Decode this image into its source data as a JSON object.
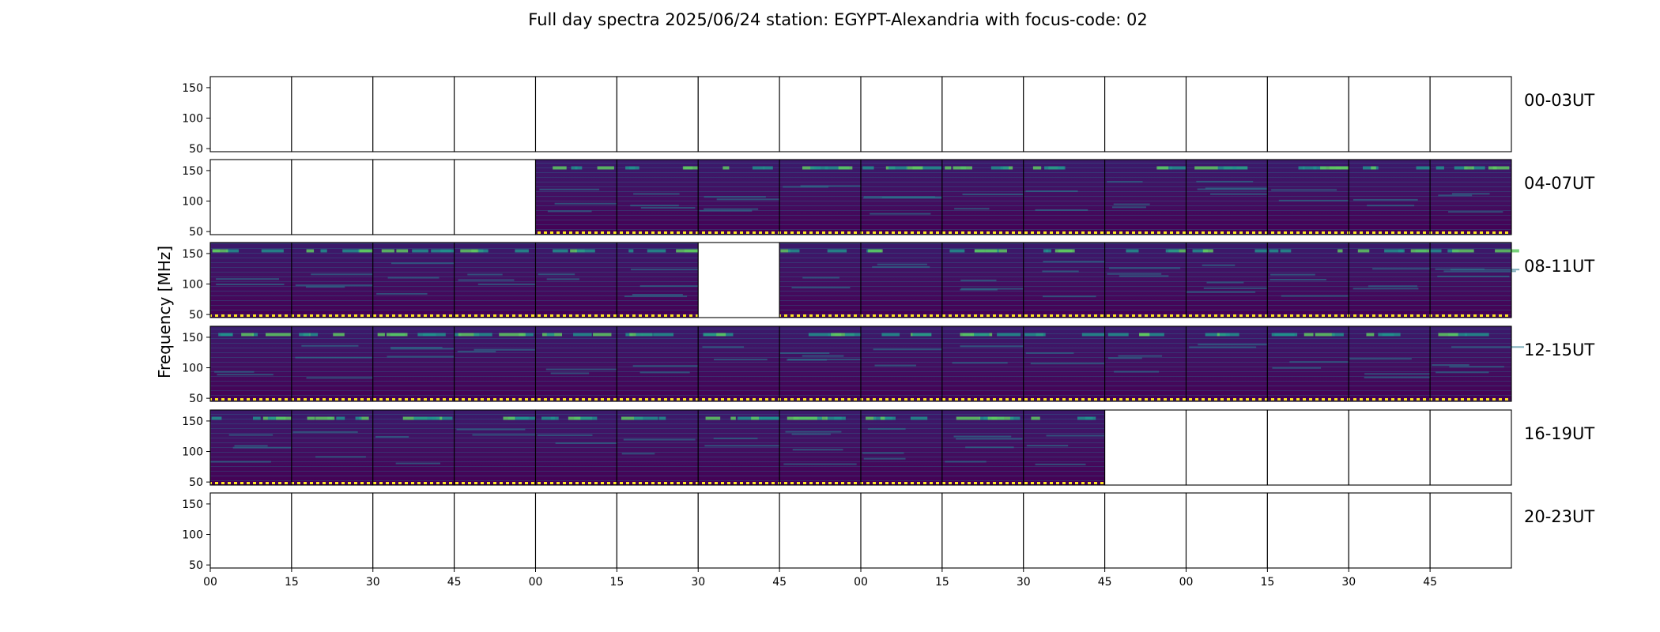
{
  "chart_data": {
    "type": "heatmap",
    "title": "Full day spectra 2025/06/24 station: EGYPT-Alexandria with focus-code: 02",
    "ylabel": "Frequency [MHz]",
    "xlabel": "",
    "ylim": [
      45,
      168
    ],
    "yticks": [
      50,
      100,
      150
    ],
    "xtick_labels": [
      "00",
      "15",
      "30",
      "45",
      "00",
      "15",
      "30",
      "45",
      "00",
      "15",
      "30",
      "45",
      "00",
      "15",
      "30",
      "45"
    ],
    "colormap": "viridis",
    "panel_minutes": 15,
    "rows": [
      {
        "label": "00-03UT",
        "panels_with_data": [
          0,
          0,
          0,
          0,
          0,
          0,
          0,
          0,
          0,
          0,
          0,
          0,
          0,
          0,
          0,
          0
        ]
      },
      {
        "label": "04-07UT",
        "panels_with_data": [
          0,
          0,
          0,
          0,
          1,
          1,
          1,
          1,
          1,
          1,
          1,
          1,
          1,
          1,
          1,
          1
        ]
      },
      {
        "label": "08-11UT",
        "panels_with_data": [
          1,
          1,
          1,
          1,
          1,
          1,
          0,
          1,
          1,
          1,
          1,
          1,
          1,
          1,
          1,
          1
        ]
      },
      {
        "label": "12-15UT",
        "panels_with_data": [
          1,
          1,
          1,
          1,
          1,
          1,
          1,
          1,
          1,
          1,
          1,
          1,
          1,
          1,
          1,
          1
        ]
      },
      {
        "label": "16-19UT",
        "panels_with_data": [
          1,
          1,
          1,
          1,
          1,
          1,
          1,
          1,
          1,
          1,
          1,
          0,
          0,
          0,
          0,
          0
        ]
      },
      {
        "label": "20-23UT",
        "panels_with_data": [
          0,
          0,
          0,
          0,
          0,
          0,
          0,
          0,
          0,
          0,
          0,
          0,
          0,
          0,
          0,
          0
        ]
      }
    ],
    "grid": false,
    "colors": {
      "low": "#440154",
      "mid": "#31688e",
      "high": "#35b779",
      "peak": "#fde725"
    }
  }
}
